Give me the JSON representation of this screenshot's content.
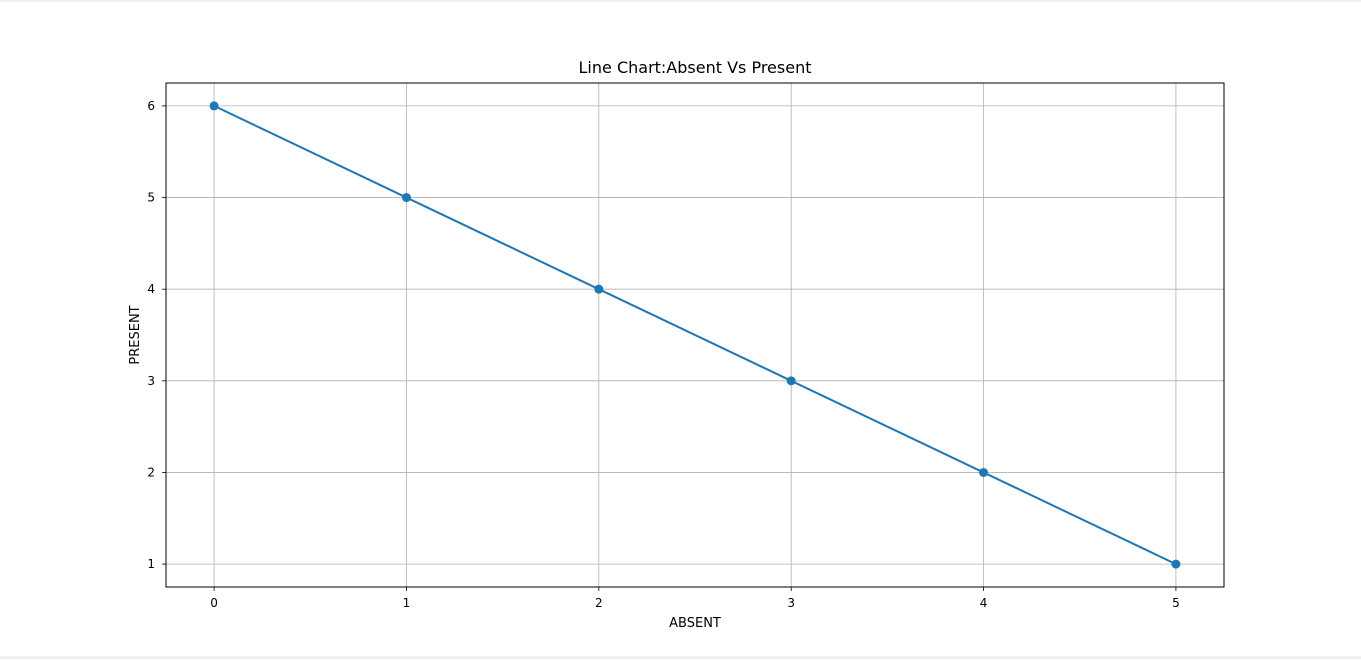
{
  "chart_data": {
    "type": "line",
    "title": "Line Chart:Absent Vs Present",
    "xlabel": "ABSENT",
    "ylabel": "PRESENT",
    "x": [
      0,
      1,
      2,
      3,
      4,
      5
    ],
    "series": [
      {
        "values": [
          6,
          5,
          4,
          3,
          2,
          1
        ],
        "color": "#1f77b4",
        "marker": "circle"
      }
    ],
    "xlim": [
      -0.25,
      5.25
    ],
    "ylim": [
      0.75,
      6.25
    ],
    "xticks": [
      0,
      1,
      2,
      3,
      4,
      5
    ],
    "yticks": [
      1,
      2,
      3,
      4,
      5,
      6
    ],
    "grid": true,
    "legend": "none"
  }
}
